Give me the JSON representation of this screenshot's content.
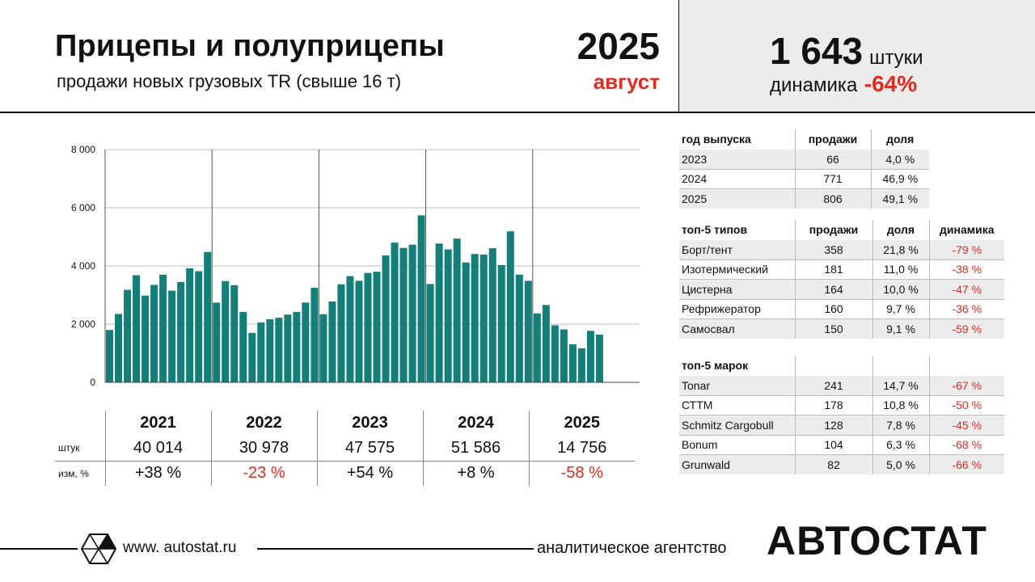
{
  "header": {
    "title": "Прицепы и полуприцепы",
    "subtitle": "продажи новых грузовых TR (свыше 16 т)",
    "year": "2025",
    "month": "август",
    "total_value": "1 643",
    "total_unit": "штуки",
    "dynamics_label": "динамика",
    "dynamics_value": "-64%"
  },
  "colors": {
    "bar": "#137f78",
    "accent_red": "#e02b20",
    "shade": "#ececec"
  },
  "chart_data": {
    "type": "bar",
    "x": [
      "2021-01",
      "2021-02",
      "2021-03",
      "2021-04",
      "2021-05",
      "2021-06",
      "2021-07",
      "2021-08",
      "2021-09",
      "2021-10",
      "2021-11",
      "2021-12",
      "2022-01",
      "2022-02",
      "2022-03",
      "2022-04",
      "2022-05",
      "2022-06",
      "2022-07",
      "2022-08",
      "2022-09",
      "2022-10",
      "2022-11",
      "2022-12",
      "2023-01",
      "2023-02",
      "2023-03",
      "2023-04",
      "2023-05",
      "2023-06",
      "2023-07",
      "2023-08",
      "2023-09",
      "2023-10",
      "2023-11",
      "2023-12",
      "2024-01",
      "2024-02",
      "2024-03",
      "2024-04",
      "2024-05",
      "2024-06",
      "2024-07",
      "2024-08",
      "2024-09",
      "2024-10",
      "2024-11",
      "2024-12",
      "2025-01",
      "2025-02",
      "2025-03",
      "2025-04",
      "2025-05",
      "2025-06",
      "2025-07",
      "2025-08"
    ],
    "values": [
      1800,
      2350,
      3180,
      3680,
      2980,
      3350,
      3700,
      3150,
      3450,
      3920,
      3820,
      4480,
      2740,
      3480,
      3340,
      2420,
      1700,
      2060,
      2170,
      2220,
      2330,
      2420,
      2740,
      3250,
      2340,
      2780,
      3370,
      3650,
      3490,
      3760,
      3800,
      4360,
      4800,
      4620,
      4730,
      5740,
      3380,
      4770,
      4570,
      4940,
      4120,
      4410,
      4390,
      4610,
      4030,
      5190,
      3700,
      3490,
      2370,
      2660,
      1960,
      1820,
      1310,
      1170,
      1770,
      1640
    ],
    "year_groups": [
      "2021",
      "2022",
      "2023",
      "2024",
      "2025"
    ],
    "ylim": [
      0,
      8000
    ],
    "yticks": [
      "0",
      "2 000",
      "4 000",
      "6 000",
      "8 000"
    ],
    "ytick_values": [
      0,
      2000,
      4000,
      6000,
      8000
    ],
    "grid": true
  },
  "yearly": {
    "row_label_units": "штук",
    "row_label_change": "изм, %",
    "years": [
      "2021",
      "2022",
      "2023",
      "2024",
      "2025"
    ],
    "units": [
      "40 014",
      "30 978",
      "47 575",
      "51 586",
      "14 756"
    ],
    "changes": [
      "+38 %",
      "-23 %",
      "+54 %",
      "+8 %",
      "-58 %"
    ],
    "change_negative": [
      false,
      true,
      false,
      false,
      true
    ]
  },
  "by_year": {
    "headers": [
      "год выпуска",
      "продажи",
      "доля"
    ],
    "rows": [
      [
        "2023",
        "66",
        "4,0 %"
      ],
      [
        "2024",
        "771",
        "46,9 %"
      ],
      [
        "2025",
        "806",
        "49,1 %"
      ]
    ]
  },
  "top_types": {
    "headers": [
      "топ-5 типов",
      "продажи",
      "доля",
      "динамика"
    ],
    "rows": [
      [
        "Борт/тент",
        "358",
        "21,8 %",
        "-79 %"
      ],
      [
        "Изотермический",
        "181",
        "11,0 %",
        "-38 %"
      ],
      [
        "Цистерна",
        "164",
        "10,0 %",
        "-47 %"
      ],
      [
        "Рефрижератор",
        "160",
        "9,7 %",
        "-36 %"
      ],
      [
        "Самосвал",
        "150",
        "9,1 %",
        "-59 %"
      ]
    ]
  },
  "top_brands": {
    "headers": [
      "топ-5 марок"
    ],
    "rows": [
      [
        "Tonar",
        "241",
        "14,7 %",
        "-67 %"
      ],
      [
        "СТТМ",
        "178",
        "10,8 %",
        "-50 %"
      ],
      [
        "Schmitz Cargobull",
        "128",
        "7,8 %",
        "-45 %"
      ],
      [
        "Bonum",
        "104",
        "6,3 %",
        "-68 %"
      ],
      [
        "Grunwald",
        "82",
        "5,0 %",
        "-66 %"
      ]
    ]
  },
  "footer": {
    "site": "www. autostat.ru",
    "agency": "аналитическое агентство",
    "brand": "АВТОСТАТ",
    "logo_icon": "autostat-logo-icon"
  }
}
